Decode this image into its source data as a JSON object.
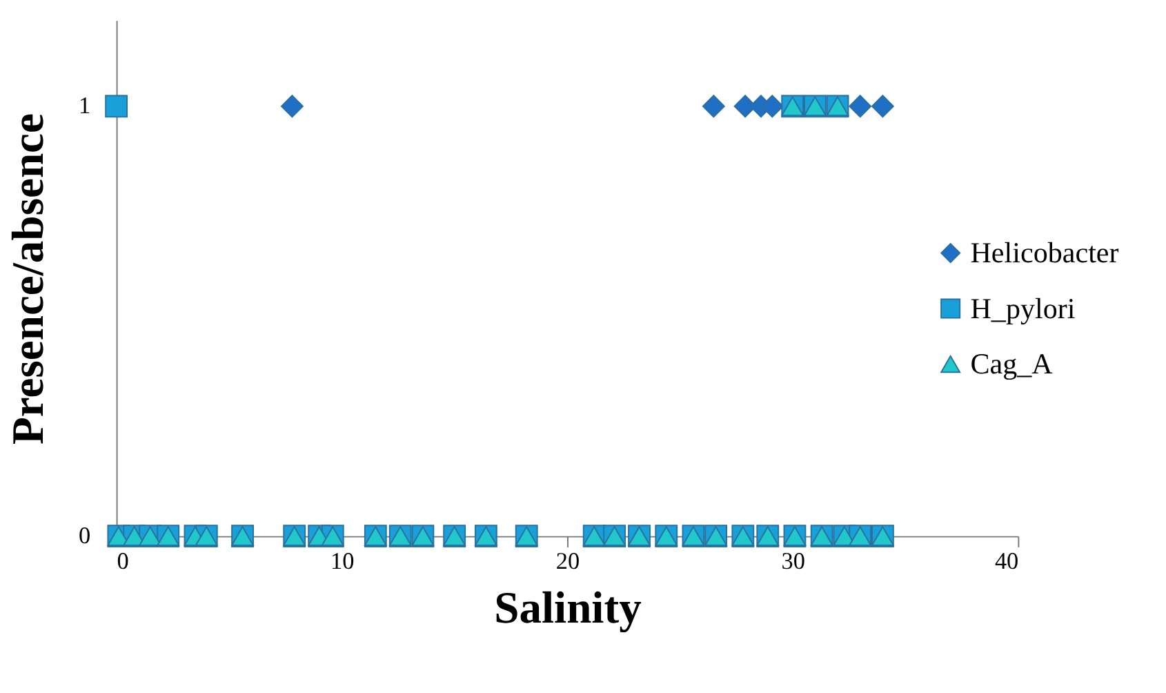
{
  "chart_data": {
    "type": "scatter",
    "xlabel": "Salinity",
    "ylabel": "Presence/absence",
    "xlim": [
      0,
      40
    ],
    "xticks": [
      0,
      10,
      20,
      30,
      40
    ],
    "ylim": [
      0,
      1.2
    ],
    "yticks": [
      0,
      1
    ],
    "grid": false,
    "legend": "right",
    "series": [
      {
        "name": "Helicobacter",
        "color": "#1f6fc5",
        "marker": "diamond",
        "x": [
          7.8,
          26.5,
          27.9,
          28.6,
          29.1,
          33.0,
          34.0
        ],
        "values": [
          1,
          1,
          1,
          1,
          1,
          1,
          1
        ]
      },
      {
        "name": "H_pylori",
        "color": "#1aa0d8",
        "marker": "square",
        "x": [
          0,
          30.0,
          31.0,
          32.0,
          0.1,
          0.8,
          1.5,
          2.3,
          3.5,
          4.0,
          5.6,
          7.9,
          9.0,
          9.6,
          11.5,
          12.6,
          13.6,
          15.0,
          16.4,
          18.2,
          21.2,
          22.1,
          23.2,
          24.4,
          25.6,
          26.6,
          27.8,
          28.9,
          30.1,
          31.3,
          32.3,
          33.0,
          34.0
        ],
        "values": [
          1,
          1,
          1,
          1,
          0,
          0,
          0,
          0,
          0,
          0,
          0,
          0,
          0,
          0,
          0,
          0,
          0,
          0,
          0,
          0,
          0,
          0,
          0,
          0,
          0,
          0,
          0,
          0,
          0,
          0,
          0,
          0,
          0
        ]
      },
      {
        "name": "Cag_A",
        "color": "#20c8cc",
        "marker": "triangle",
        "x": [
          30.0,
          31.0,
          32.0,
          0.1,
          0.8,
          1.5,
          2.3,
          3.5,
          4.0,
          5.6,
          7.9,
          9.0,
          9.6,
          11.5,
          12.6,
          13.6,
          15.0,
          16.4,
          18.2,
          21.2,
          22.1,
          23.2,
          24.4,
          25.6,
          26.6,
          27.8,
          28.9,
          30.1,
          31.3,
          32.3,
          33.0,
          34.0
        ],
        "values": [
          1,
          1,
          1,
          0,
          0,
          0,
          0,
          0,
          0,
          0,
          0,
          0,
          0,
          0,
          0,
          0,
          0,
          0,
          0,
          0,
          0,
          0,
          0,
          0,
          0,
          0,
          0,
          0,
          0,
          0,
          0,
          0
        ]
      }
    ]
  }
}
